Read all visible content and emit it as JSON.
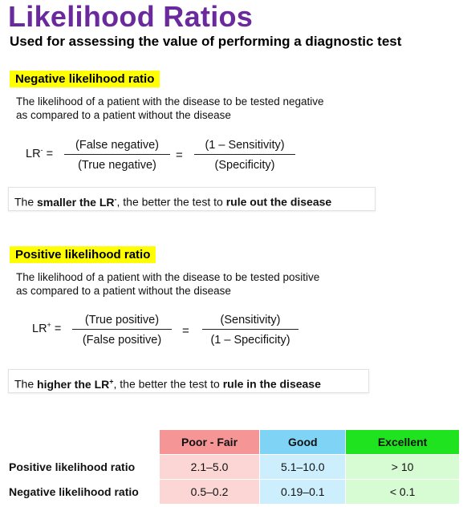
{
  "title": "Likelihood Ratios",
  "subtitle": "Used for assessing the value of performing a diagnostic test",
  "negative": {
    "label": "Negative likelihood ratio",
    "desc_line1": "The likelihood of a patient with the disease to be tested negative",
    "desc_line2": "as compared to a patient without the disease",
    "lhs_base": "LR",
    "lhs_sup": "-",
    "lhs_eq": " =",
    "frac1_num": "(False negative)",
    "frac1_den": "(True negative)",
    "eq": "=",
    "frac2_num": "(1 – Sensitivity)",
    "frac2_den": "(Specificity)",
    "note_pre": "The ",
    "note_bold1": "smaller the LR",
    "note_sup": "-",
    "note_mid": ", the better the test to ",
    "note_bold2": "rule out the disease"
  },
  "positive": {
    "label": "Positive likelihood ratio",
    "desc_line1": "The likelihood of a patient with the disease to be tested positive",
    "desc_line2": "as compared to a patient without the disease",
    "lhs_base": "LR",
    "lhs_sup": "+",
    "lhs_eq": " =",
    "frac1_num": "(True positive)",
    "frac1_den": "(False positive)",
    "eq": "=",
    "frac2_num": "(Sensitivity)",
    "frac2_den": "(1 – Specificity)",
    "note_pre": "The ",
    "note_bold1": "higher the LR",
    "note_sup": "+",
    "note_mid": ", the better the test to ",
    "note_bold2": "rule in the disease"
  },
  "table": {
    "headers": [
      "Poor - Fair",
      "Good",
      "Excellent"
    ],
    "rows": [
      {
        "label": "Positive likelihood ratio",
        "values": [
          "2.1–5.0",
          "5.1–10.0",
          "> 10"
        ]
      },
      {
        "label": "Negative likelihood ratio",
        "values": [
          "0.5–0.2",
          "0.19–0.1",
          "< 0.1"
        ]
      }
    ]
  },
  "colors": {
    "title": "#6a2a9e",
    "highlight": "#ffff00",
    "poor_header": "#f69595",
    "good_header": "#7fd3f5",
    "excellent_header": "#1ee31e",
    "poor_cell": "#fcd5d5",
    "good_cell": "#cdeffd",
    "excellent_cell": "#d7fbd3"
  }
}
